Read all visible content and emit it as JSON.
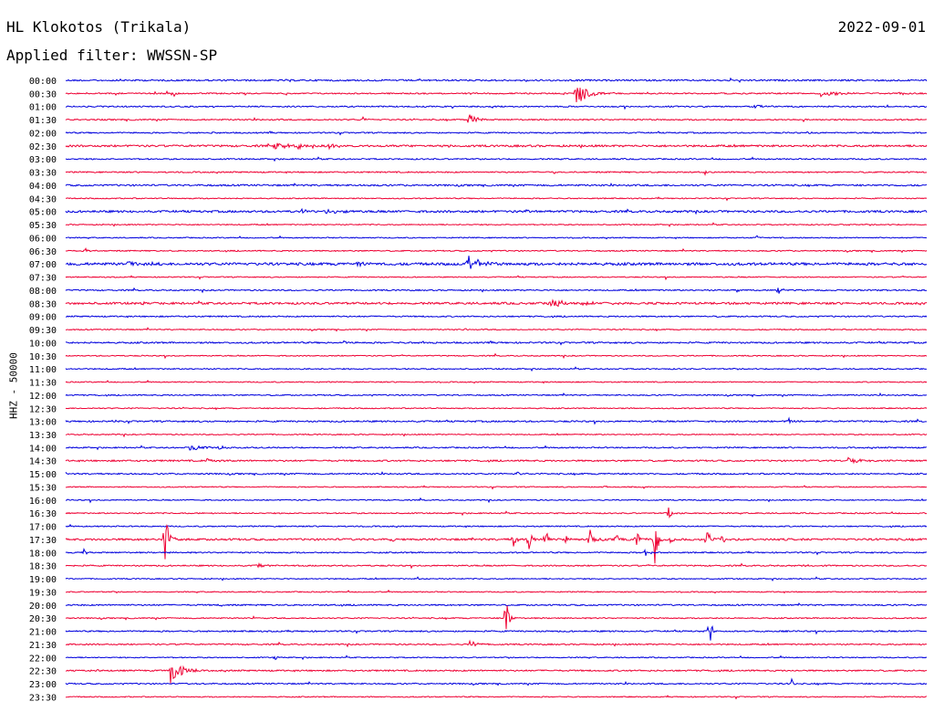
{
  "header": {
    "station": "HL Klokotos (Trikala)",
    "date": "2022-09-01",
    "filter": "Applied filter: WWSSN-SP",
    "channel": "HHZ - 50000"
  },
  "colors": {
    "blue": "#0000dd",
    "red": "#ee0033"
  },
  "chart_data": {
    "type": "line",
    "title": "HL Klokotos (Trikala)",
    "subtitle": "Applied filter: WWSSN-SP",
    "ylabel": "HHZ - 50000",
    "rows": [
      {
        "time": "00:00",
        "color": "blue",
        "noise": 1.2,
        "events": [
          [
            975,
            3,
            3
          ]
        ]
      },
      {
        "time": "00:30",
        "color": "red",
        "noise": 1.0,
        "events": [
          [
            190,
            5,
            6
          ],
          [
            632,
            14,
            25
          ],
          [
            710,
            2,
            4
          ],
          [
            900,
            3,
            40
          ],
          [
            127,
            2,
            3
          ]
        ]
      },
      {
        "time": "01:00",
        "color": "blue",
        "noise": 1.0,
        "events": [
          [
            825,
            3,
            25
          ]
        ]
      },
      {
        "time": "01:30",
        "color": "red",
        "noise": 1.0,
        "events": [
          [
            398,
            3,
            4
          ],
          [
            515,
            9,
            14
          ],
          [
            800,
            3,
            5
          ]
        ]
      },
      {
        "time": "02:00",
        "color": "blue",
        "noise": 1.0,
        "events": [
          [
            233,
            2,
            4
          ],
          [
            885,
            3,
            6
          ]
        ]
      },
      {
        "time": "02:30",
        "color": "red",
        "noise": 1.5,
        "events": [
          [
            300,
            4,
            30
          ],
          [
            328,
            8,
            4
          ],
          [
            360,
            3,
            15
          ]
        ]
      },
      {
        "time": "03:00",
        "color": "blue",
        "noise": 1.0,
        "events": []
      },
      {
        "time": "03:30",
        "color": "red",
        "noise": 1.0,
        "events": [
          [
            607,
            2,
            4
          ],
          [
            773,
            2,
            5
          ]
        ]
      },
      {
        "time": "04:00",
        "color": "blue",
        "noise": 1.3,
        "events": []
      },
      {
        "time": "04:30",
        "color": "red",
        "noise": 0.8,
        "events": []
      },
      {
        "time": "05:00",
        "color": "blue",
        "noise": 1.6,
        "events": [
          [
            330,
            3,
            10
          ],
          [
            355,
            3,
            30
          ],
          [
            575,
            3,
            8
          ]
        ]
      },
      {
        "time": "05:30",
        "color": "red",
        "noise": 0.8,
        "events": [
          [
            930,
            2,
            3
          ]
        ]
      },
      {
        "time": "06:00",
        "color": "blue",
        "noise": 0.8,
        "events": [
          [
            830,
            3,
            3
          ]
        ]
      },
      {
        "time": "06:30",
        "color": "red",
        "noise": 0.9,
        "events": [
          [
            92,
            4,
            8
          ]
        ]
      },
      {
        "time": "07:00",
        "color": "blue",
        "noise": 2.0,
        "events": [
          [
            512,
            11,
            26
          ],
          [
            392,
            3,
            25
          ],
          [
            140,
            3,
            40
          ]
        ]
      },
      {
        "time": "07:30",
        "color": "red",
        "noise": 0.8,
        "events": []
      },
      {
        "time": "08:00",
        "color": "blue",
        "noise": 1.0,
        "events": [
          [
            852,
            5,
            10
          ],
          [
            808,
            2,
            6
          ]
        ]
      },
      {
        "time": "08:30",
        "color": "red",
        "noise": 1.6,
        "events": [
          [
            155,
            3,
            4
          ],
          [
            600,
            3,
            80
          ]
        ]
      },
      {
        "time": "09:00",
        "color": "blue",
        "noise": 1.0,
        "events": []
      },
      {
        "time": "09:30",
        "color": "red",
        "noise": 0.8,
        "events": [
          [
            510,
            3,
            4
          ]
        ]
      },
      {
        "time": "10:00",
        "color": "blue",
        "noise": 1.2,
        "events": [
          [
            377,
            2,
            5
          ],
          [
            463,
            2,
            6
          ]
        ]
      },
      {
        "time": "10:30",
        "color": "red",
        "noise": 0.8,
        "events": []
      },
      {
        "time": "11:00",
        "color": "blue",
        "noise": 0.9,
        "events": [
          [
            330,
            2,
            3
          ]
        ]
      },
      {
        "time": "11:30",
        "color": "red",
        "noise": 0.8,
        "events": []
      },
      {
        "time": "12:00",
        "color": "blue",
        "noise": 0.9,
        "events": []
      },
      {
        "time": "12:30",
        "color": "red",
        "noise": 0.8,
        "events": []
      },
      {
        "time": "13:00",
        "color": "blue",
        "noise": 1.2,
        "events": [
          [
            865,
            4,
            8
          ],
          [
            125,
            2,
            3
          ]
        ]
      },
      {
        "time": "13:30",
        "color": "red",
        "noise": 0.8,
        "events": []
      },
      {
        "time": "14:00",
        "color": "blue",
        "noise": 1.0,
        "events": [
          [
            208,
            3,
            40
          ],
          [
            238,
            4,
            10
          ]
        ]
      },
      {
        "time": "14:30",
        "color": "red",
        "noise": 1.2,
        "events": [
          [
            225,
            3,
            25
          ],
          [
            930,
            3,
            30
          ]
        ]
      },
      {
        "time": "15:00",
        "color": "blue",
        "noise": 1.1,
        "events": [
          [
            567,
            3,
            4
          ]
        ]
      },
      {
        "time": "15:30",
        "color": "red",
        "noise": 0.8,
        "events": [
          [
            662,
            4,
            4
          ]
        ]
      },
      {
        "time": "16:00",
        "color": "blue",
        "noise": 0.8,
        "events": []
      },
      {
        "time": "16:30",
        "color": "red",
        "noise": 0.9,
        "events": [
          [
            732,
            8,
            10
          ]
        ]
      },
      {
        "time": "17:00",
        "color": "blue",
        "noise": 0.9,
        "events": []
      },
      {
        "time": "17:30",
        "color": "red",
        "noise": 1.5,
        "events": [
          [
            181,
            36,
            8
          ],
          [
            563,
            10,
            6
          ],
          [
            580,
            20,
            5
          ],
          [
            598,
            16,
            6
          ],
          [
            620,
            9,
            5
          ],
          [
            647,
            12,
            7
          ],
          [
            676,
            8,
            4
          ],
          [
            697,
            13,
            8
          ],
          [
            718,
            34,
            6
          ],
          [
            735,
            5,
            6
          ],
          [
            775,
            14,
            8
          ],
          [
            790,
            14,
            6
          ],
          [
            430,
            3,
            4
          ]
        ]
      },
      {
        "time": "18:00",
        "color": "blue",
        "noise": 1.0,
        "events": [
          [
            92,
            4,
            6
          ],
          [
            707,
            5,
            4
          ]
        ]
      },
      {
        "time": "18:30",
        "color": "red",
        "noise": 1.0,
        "events": [
          [
            283,
            3,
            12
          ],
          [
            883,
            2,
            3
          ]
        ]
      },
      {
        "time": "19:00",
        "color": "blue",
        "noise": 0.8,
        "events": [
          [
            458,
            2,
            3
          ]
        ]
      },
      {
        "time": "19:30",
        "color": "red",
        "noise": 0.8,
        "events": []
      },
      {
        "time": "20:00",
        "color": "blue",
        "noise": 1.1,
        "events": [
          [
            243,
            2,
            4
          ]
        ]
      },
      {
        "time": "20:30",
        "color": "red",
        "noise": 0.9,
        "events": [
          [
            555,
            29,
            6
          ],
          [
            282,
            3,
            3
          ]
        ]
      },
      {
        "time": "21:00",
        "color": "blue",
        "noise": 1.1,
        "events": [
          [
            778,
            16,
            6
          ]
        ]
      },
      {
        "time": "21:30",
        "color": "red",
        "noise": 1.0,
        "events": [
          [
            515,
            4,
            18
          ],
          [
            150,
            2,
            3
          ]
        ]
      },
      {
        "time": "22:00",
        "color": "blue",
        "noise": 0.8,
        "events": [
          [
            302,
            3,
            4
          ]
        ]
      },
      {
        "time": "22:30",
        "color": "red",
        "noise": 1.1,
        "events": [
          [
            187,
            16,
            22
          ],
          [
            105,
            2,
            4
          ]
        ]
      },
      {
        "time": "23:00",
        "color": "blue",
        "noise": 1.0,
        "events": [
          [
            868,
            6,
            4
          ],
          [
            213,
            2,
            3
          ]
        ]
      },
      {
        "time": "23:30",
        "color": "red",
        "noise": 0.8,
        "events": []
      }
    ]
  }
}
